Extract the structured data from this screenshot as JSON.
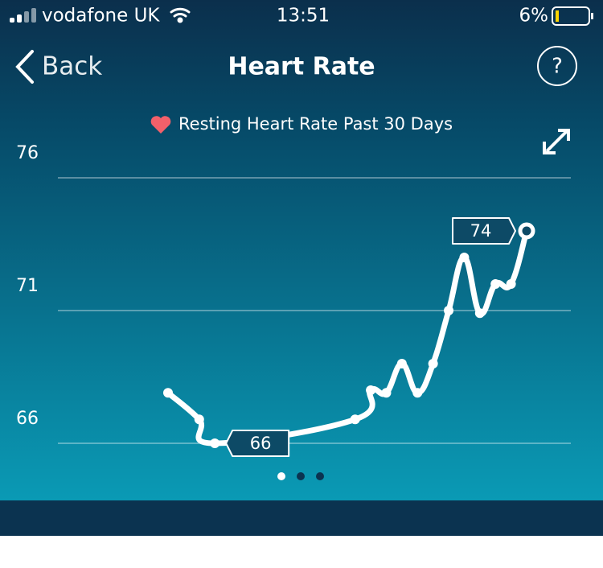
{
  "status_bar": {
    "carrier": "vodafone UK",
    "time": "13:51",
    "battery": "6%"
  },
  "nav": {
    "back": "Back",
    "title": "Heart Rate",
    "help": "?"
  },
  "chart_data": {
    "type": "line",
    "title": "Resting Heart Rate Past 30 Days",
    "x": [
      0,
      2,
      3,
      12,
      13,
      14,
      15,
      16,
      17,
      18,
      19,
      20,
      21,
      22,
      23
    ],
    "values": [
      67.9,
      66.9,
      66,
      66.9,
      68.0,
      67.9,
      69.0,
      67.9,
      69.0,
      71.0,
      73.0,
      70.9,
      72.0,
      72.0,
      74
    ],
    "color": "#ffffff",
    "xlim": [
      0,
      23
    ],
    "ylim": [
      66,
      76
    ],
    "yticks": [
      66,
      71,
      76
    ],
    "grid": true
  }
}
